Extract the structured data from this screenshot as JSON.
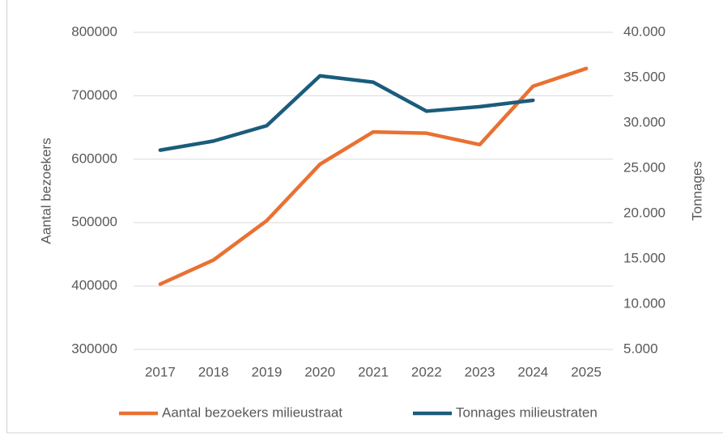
{
  "chart_data": {
    "type": "line",
    "categories": [
      "2017",
      "2018",
      "2019",
      "2020",
      "2021",
      "2022",
      "2023",
      "2024",
      "2025"
    ],
    "series": [
      {
        "name": "Aantal bezoekers milieustraat",
        "color": "#e97132",
        "values": [
          403000,
          441000,
          503000,
          592000,
          643000,
          641000,
          623000,
          715000,
          743000
        ]
      },
      {
        "name": "Tonnages milieustraten",
        "color": "#1b5c7c",
        "axis": "y2",
        "values": [
          27000,
          28000,
          29700,
          35200,
          34500,
          31300,
          31800,
          32500,
          null
        ]
      }
    ],
    "ylabel": "Aantal bezoekers",
    "y2label": "Tonnages",
    "ylim": [
      300000,
      800000
    ],
    "yticks": [
      300000,
      400000,
      500000,
      600000,
      700000,
      800000
    ],
    "y2lim": [
      5000,
      40000
    ],
    "y2ticks": [
      {
        "value": 5000,
        "label": "5.000"
      },
      {
        "value": 10000,
        "label": "10.000"
      },
      {
        "value": 15000,
        "label": "15.000"
      },
      {
        "value": 20000,
        "label": "20.000"
      },
      {
        "value": 25000,
        "label": "25.000"
      },
      {
        "value": 30000,
        "label": "30.000"
      },
      {
        "value": 35000,
        "label": "35.000"
      },
      {
        "value": 40000,
        "label": "40.000"
      }
    ],
    "grid": true,
    "legend": "bottom"
  }
}
